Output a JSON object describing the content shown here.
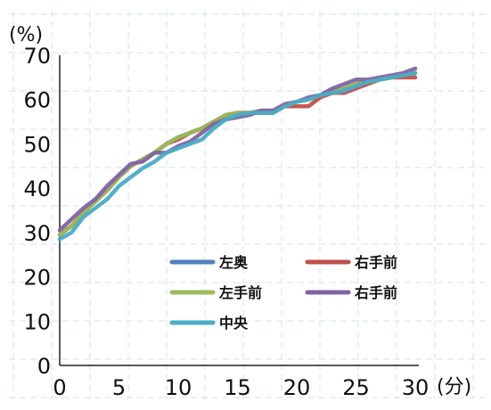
{
  "chart_data": {
    "type": "line",
    "y_unit": "(%)",
    "x_unit": "(分)",
    "xlim": [
      0,
      30
    ],
    "ylim": [
      0,
      70
    ],
    "x_ticks": [
      "0",
      "5",
      "10",
      "15",
      "20",
      "25",
      "30"
    ],
    "y_ticks": [
      "0",
      "10",
      "20",
      "30",
      "40",
      "50",
      "60",
      "70"
    ],
    "grid": "dashed",
    "legend_position": "center-right",
    "x": [
      0,
      1,
      2,
      3,
      4,
      5,
      6,
      7,
      8,
      9,
      10,
      11,
      12,
      13,
      14,
      15,
      16,
      17,
      18,
      19,
      20,
      21,
      22,
      23,
      24,
      25,
      26,
      27,
      28,
      29,
      30
    ],
    "series": [
      {
        "name": "左奥",
        "color": "#4f81bd",
        "values": [
          29.5,
          31.5,
          34.5,
          37,
          39.5,
          42.5,
          45,
          46.5,
          48,
          50,
          51.5,
          52.5,
          53.5,
          55,
          56.5,
          57,
          57,
          57.5,
          57.5,
          58.5,
          59.5,
          60,
          61,
          62,
          62.5,
          63.5,
          64,
          64.5,
          65,
          65.5,
          66
        ]
      },
      {
        "name": "右手前",
        "color": "#c0504d",
        "values": [
          29.5,
          31.5,
          34.5,
          37,
          39.5,
          42.5,
          45,
          46.5,
          48,
          50,
          51,
          52.5,
          53.5,
          55,
          56.5,
          57,
          57,
          57,
          57,
          58.5,
          58.5,
          58.5,
          60.5,
          61.5,
          61.5,
          62.5,
          63.5,
          64.5,
          65,
          65,
          65
        ]
      },
      {
        "name": "左手前",
        "color": "#9bbb59",
        "values": [
          29.5,
          31.5,
          34.5,
          37,
          39.5,
          42.5,
          45,
          46.5,
          48,
          50,
          51.5,
          52.5,
          53.5,
          55,
          56.5,
          57,
          57,
          57.5,
          57.5,
          58.5,
          59.5,
          60,
          61,
          62,
          62.5,
          63.5,
          64,
          64.5,
          65,
          65.5,
          66
        ]
      },
      {
        "name": "右手前",
        "color": "#8064a2",
        "values": [
          30.5,
          33,
          35.5,
          37.5,
          40.5,
          43,
          45.5,
          46,
          48,
          48,
          49.5,
          50.5,
          52.5,
          54.5,
          55.5,
          56,
          56.5,
          57.5,
          57.5,
          59,
          59.5,
          60.5,
          61,
          62.5,
          63.5,
          64.5,
          64.5,
          65,
          65.5,
          66,
          67
        ]
      },
      {
        "name": "中央",
        "color": "#4bacc6",
        "values": [
          28.5,
          30,
          33.5,
          35.5,
          37.5,
          40.5,
          42.5,
          44.5,
          46,
          48,
          49,
          50,
          51,
          53.5,
          55.5,
          56.5,
          57,
          57,
          57,
          58.5,
          59.5,
          60,
          61,
          61.5,
          62,
          63,
          64,
          64.5,
          65,
          65.5,
          66
        ]
      }
    ]
  }
}
